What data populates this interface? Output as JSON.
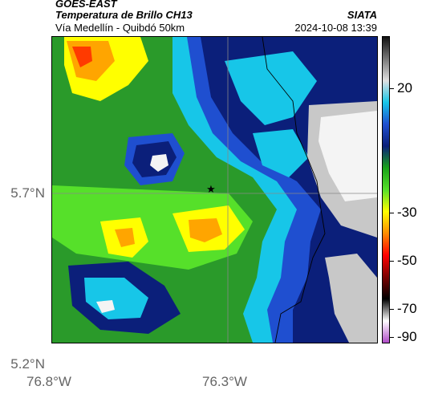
{
  "header": {
    "satellite": "GOES-EAST",
    "product": "Temperatura de Brillo CH13",
    "organization": "SIATA",
    "region": "Vía Medellín - Quibdó 50km",
    "datetime": "2024-10-08 13:39"
  },
  "axes": {
    "lat_labels": [
      "5.7°N",
      "5.2°N"
    ],
    "lon_labels": [
      "76.8°W",
      "76.3°W"
    ]
  },
  "colorbar": {
    "tick_labels": [
      "20",
      "-30",
      "-50",
      "-70",
      "-90"
    ],
    "colors": [
      "#111111",
      "#777777",
      "#e0e0e0",
      "#17c6e8",
      "#1f4fd0",
      "#0b1f7a",
      "#19a319",
      "#56e02a",
      "#ffff00",
      "#ff8c00",
      "#ff0000",
      "#7a0000",
      "#000000",
      "#ffffff",
      "#b04cc8"
    ]
  },
  "map": {
    "station_marker": "★",
    "colors": {
      "green": "#2a9a2a",
      "light_green": "#56e02a",
      "yellow": "#ffff00",
      "orange": "#ffa500",
      "red": "#ff3a00",
      "cyan": "#17c6e8",
      "blue": "#1f4fd0",
      "dark_blue": "#0b1f7a",
      "gray": "#c8c8c8",
      "white": "#f4f4f4"
    }
  }
}
